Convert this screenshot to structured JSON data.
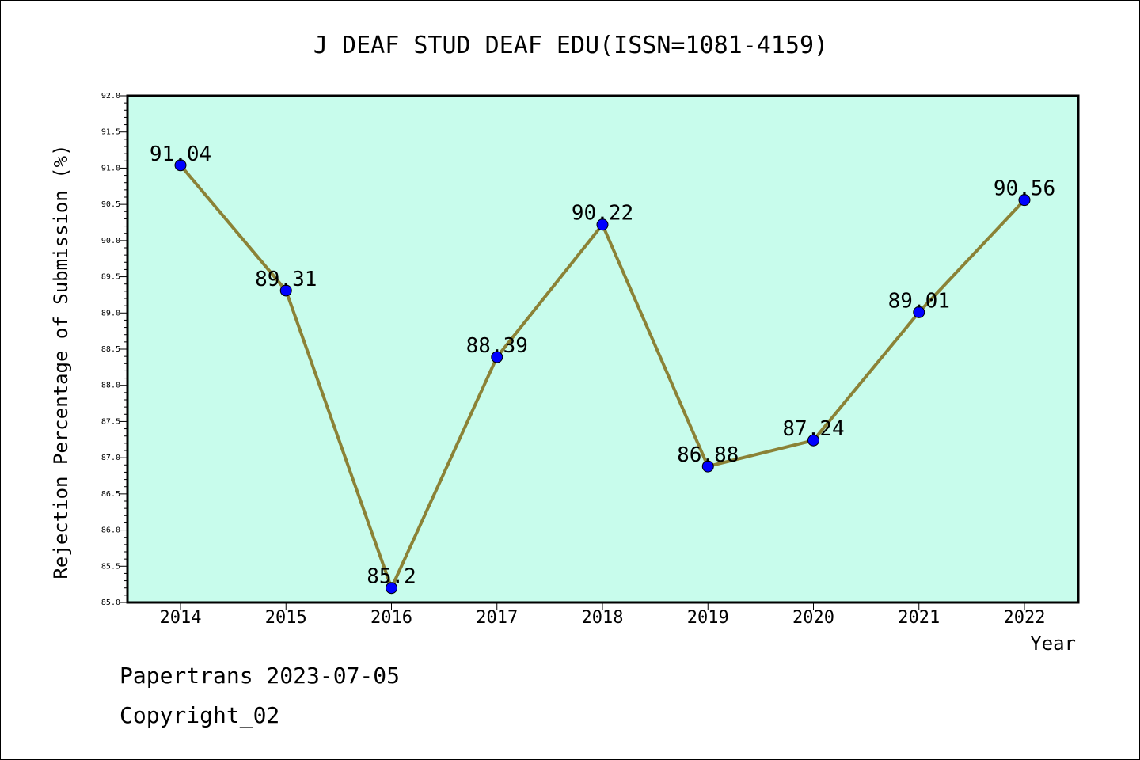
{
  "chart_data": {
    "type": "line",
    "title": "J DEAF STUD DEAF EDU(ISSN=1081-4159)",
    "xlabel": "Year",
    "ylabel": "Rejection Percentage of Submission (%)",
    "categories": [
      "2014",
      "2015",
      "2016",
      "2017",
      "2018",
      "2019",
      "2020",
      "2021",
      "2022"
    ],
    "values": [
      91.04,
      89.31,
      85.2,
      88.39,
      90.22,
      86.88,
      87.24,
      89.01,
      90.56
    ],
    "data_labels": [
      "91.04",
      "89.31",
      "85.2",
      "88.39",
      "90.22",
      "86.88",
      "87.24",
      "89.01",
      "90.56"
    ],
    "ylim": [
      85.0,
      92.0
    ],
    "y_ticks": [
      "85.0",
      "85.5",
      "86.0",
      "86.5",
      "87.0",
      "87.5",
      "88.0",
      "88.5",
      "89.0",
      "89.5",
      "90.0",
      "90.5",
      "91.0",
      "91.5",
      "92.0"
    ],
    "grid": false,
    "colors": {
      "plot_background": "#c8fcec",
      "line": "#8b8236",
      "marker": "#0000ff"
    }
  },
  "footer": {
    "line1": "Papertrans 2023-07-05",
    "line2": "Copyright_02"
  }
}
